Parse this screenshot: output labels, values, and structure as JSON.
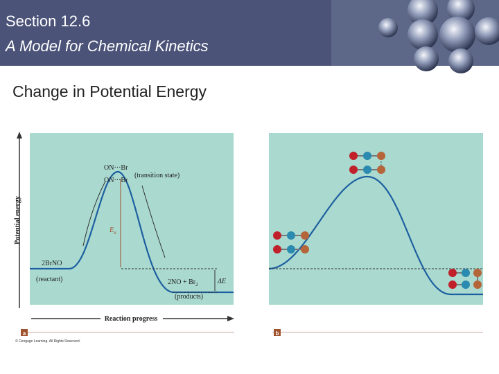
{
  "header": {
    "section": "Section 12.6",
    "title": "A Model for Chemical Kinetics"
  },
  "subtitle": "Change in Potential Energy",
  "panel_a": {
    "y_axis_label": "Potential energy",
    "x_axis_label": "Reaction progress",
    "transition_top": "ON···Br",
    "transition_bottom": "ON···Br",
    "transition_note": "(transition state)",
    "ea_symbol": "E",
    "ea_subscript": "a",
    "reactant": "2BrNO",
    "reactant_note": "(reactant)",
    "products": "2NO + Br",
    "products_subscript": "2",
    "products_note": "(products)",
    "delta_e": "ΔE",
    "badge": "a"
  },
  "panel_b": {
    "badge": "b"
  },
  "copyright": "© Cengage Learning. All Rights Reserved."
}
